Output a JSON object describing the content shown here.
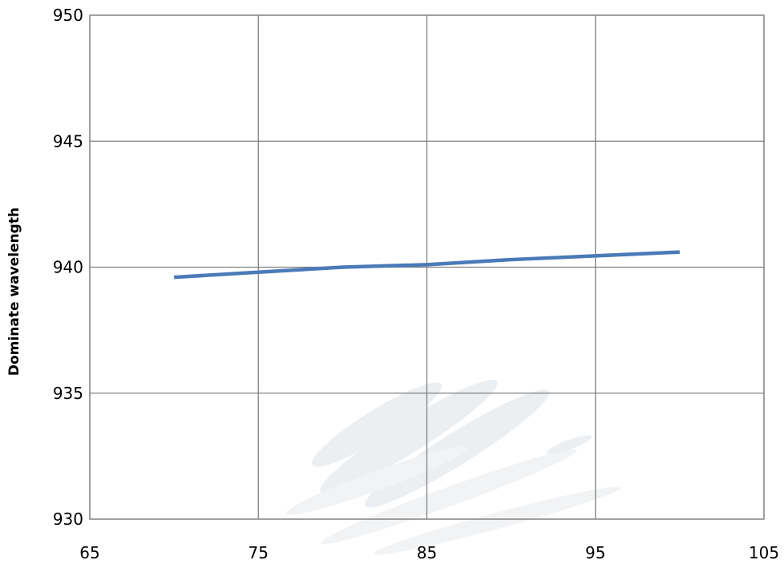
{
  "chart_data": {
    "type": "line",
    "title": "",
    "xlabel": "",
    "ylabel": "Dominate wavelength",
    "xlim": [
      65,
      105
    ],
    "ylim": [
      930,
      950
    ],
    "xticks": [
      65,
      75,
      85,
      95,
      105
    ],
    "yticks": [
      930,
      935,
      940,
      945,
      950
    ],
    "grid": true,
    "legend": "none",
    "series": [
      {
        "color": "#4a7ab8",
        "points": [
          {
            "x": 70,
            "y": 939.6
          },
          {
            "x": 75,
            "y": 939.8
          },
          {
            "x": 80,
            "y": 940.0
          },
          {
            "x": 85,
            "y": 940.1
          },
          {
            "x": 90,
            "y": 940.3
          },
          {
            "x": 95,
            "y": 940.45
          },
          {
            "x": 100,
            "y": 940.6
          }
        ]
      }
    ]
  },
  "colors": {
    "grid": "#808080",
    "series": "#4a7ab8",
    "watermark": "#dde3e8"
  }
}
